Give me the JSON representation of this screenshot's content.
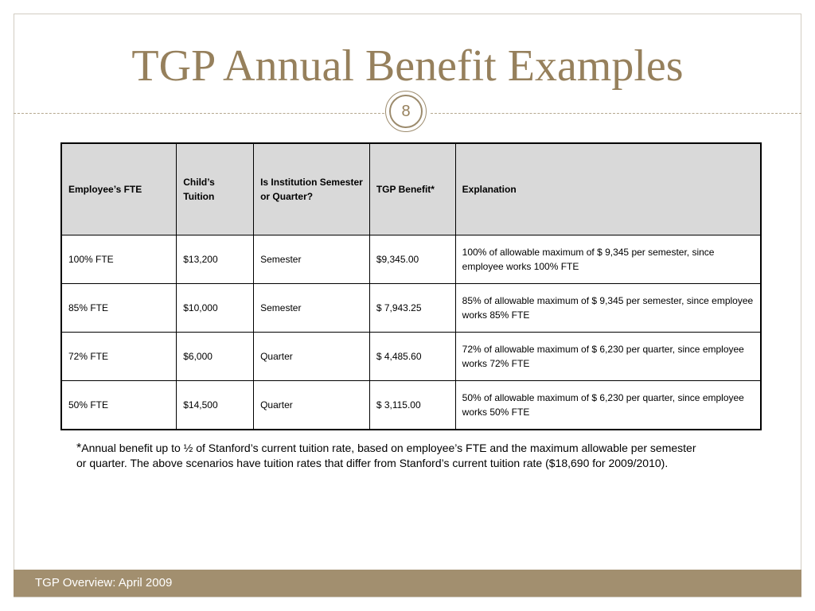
{
  "slide": {
    "title": "TGP Annual Benefit Examples",
    "number": "8"
  },
  "table": {
    "headers": [
      "Employee’s FTE",
      "Child’s Tuition",
      "Is Institution Semester or Quarter?",
      "TGP Benefit*",
      "Explanation"
    ],
    "rows": [
      [
        "100% FTE",
        "$13,200",
        "Semester",
        "$9,345.00",
        "100% of allowable maximum of $ 9,345 per  semester, since employee works 100% FTE"
      ],
      [
        "85% FTE",
        "$10,000",
        "Semester",
        "$ 7,943.25",
        "85% of allowable maximum of $ 9,345 per semester, since employee works 85% FTE"
      ],
      [
        "72% FTE",
        "$6,000",
        "Quarter",
        "$ 4,485.60",
        "72% of allowable maximum of $ 6,230 per quarter, since employee works 72% FTE"
      ],
      [
        "50% FTE",
        "$14,500",
        "Quarter",
        "$ 3,115.00",
        "50% of allowable maximum of $ 6,230 per quarter, since employee works 50% FTE"
      ]
    ]
  },
  "footnote": {
    "marker": "*",
    "text": "Annual benefit up to ½ of Stanford’s current tuition rate, based on employee’s FTE and the maximum allowable per semester or quarter. The above scenarios have tuition rates that differ from Stanford’s current tuition rate ($18,690 for 2009/2010)."
  },
  "footer": {
    "text": "TGP Overview: April 2009"
  },
  "colors": {
    "accent": "#96805c",
    "footer_bar": "#a28f6f",
    "header_fill": "#d9d9d9"
  }
}
